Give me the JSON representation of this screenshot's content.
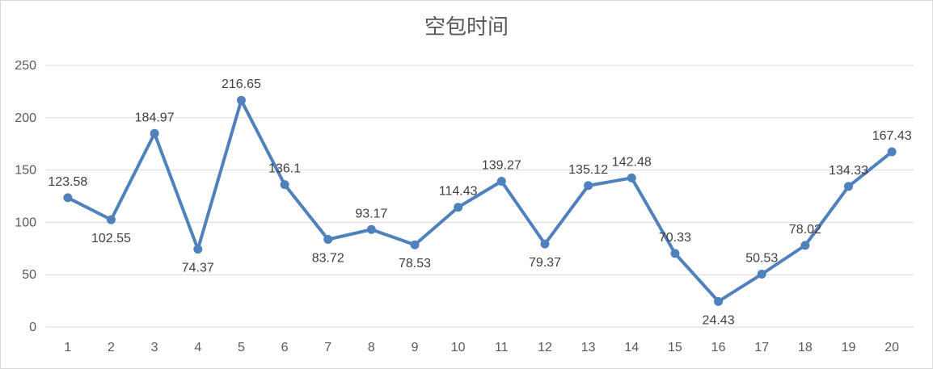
{
  "chart_data": {
    "type": "line",
    "title": "空包时间",
    "xlabel": "",
    "ylabel": "",
    "categories": [
      "1",
      "2",
      "3",
      "4",
      "5",
      "6",
      "7",
      "8",
      "9",
      "10",
      "11",
      "12",
      "13",
      "14",
      "15",
      "16",
      "17",
      "18",
      "19",
      "20"
    ],
    "series": [
      {
        "values": [
          123.58,
          102.55,
          184.97,
          74.37,
          216.65,
          136.1,
          83.72,
          93.17,
          78.53,
          114.43,
          139.27,
          79.37,
          135.12,
          142.48,
          70.33,
          24.43,
          50.53,
          78.02,
          134.33,
          167.43
        ],
        "labels": [
          "123.58",
          "102.55",
          "184.97",
          "74.37",
          "216.65",
          "136.1",
          "83.72",
          "93.17",
          "78.53",
          "114.43",
          "139.27",
          "79.37",
          "135.12",
          "142.48",
          "70.33",
          "24.43",
          "50.53",
          "78.02",
          "134.33",
          "167.43"
        ]
      }
    ],
    "ylim": [
      0,
      250
    ],
    "yticks": [
      "0",
      "50",
      "100",
      "150",
      "200",
      "250"
    ],
    "grid": true,
    "legend": "none",
    "colors": {
      "series": "#4f81bd",
      "grid": "#d9d9d9",
      "text": "#595959"
    }
  }
}
